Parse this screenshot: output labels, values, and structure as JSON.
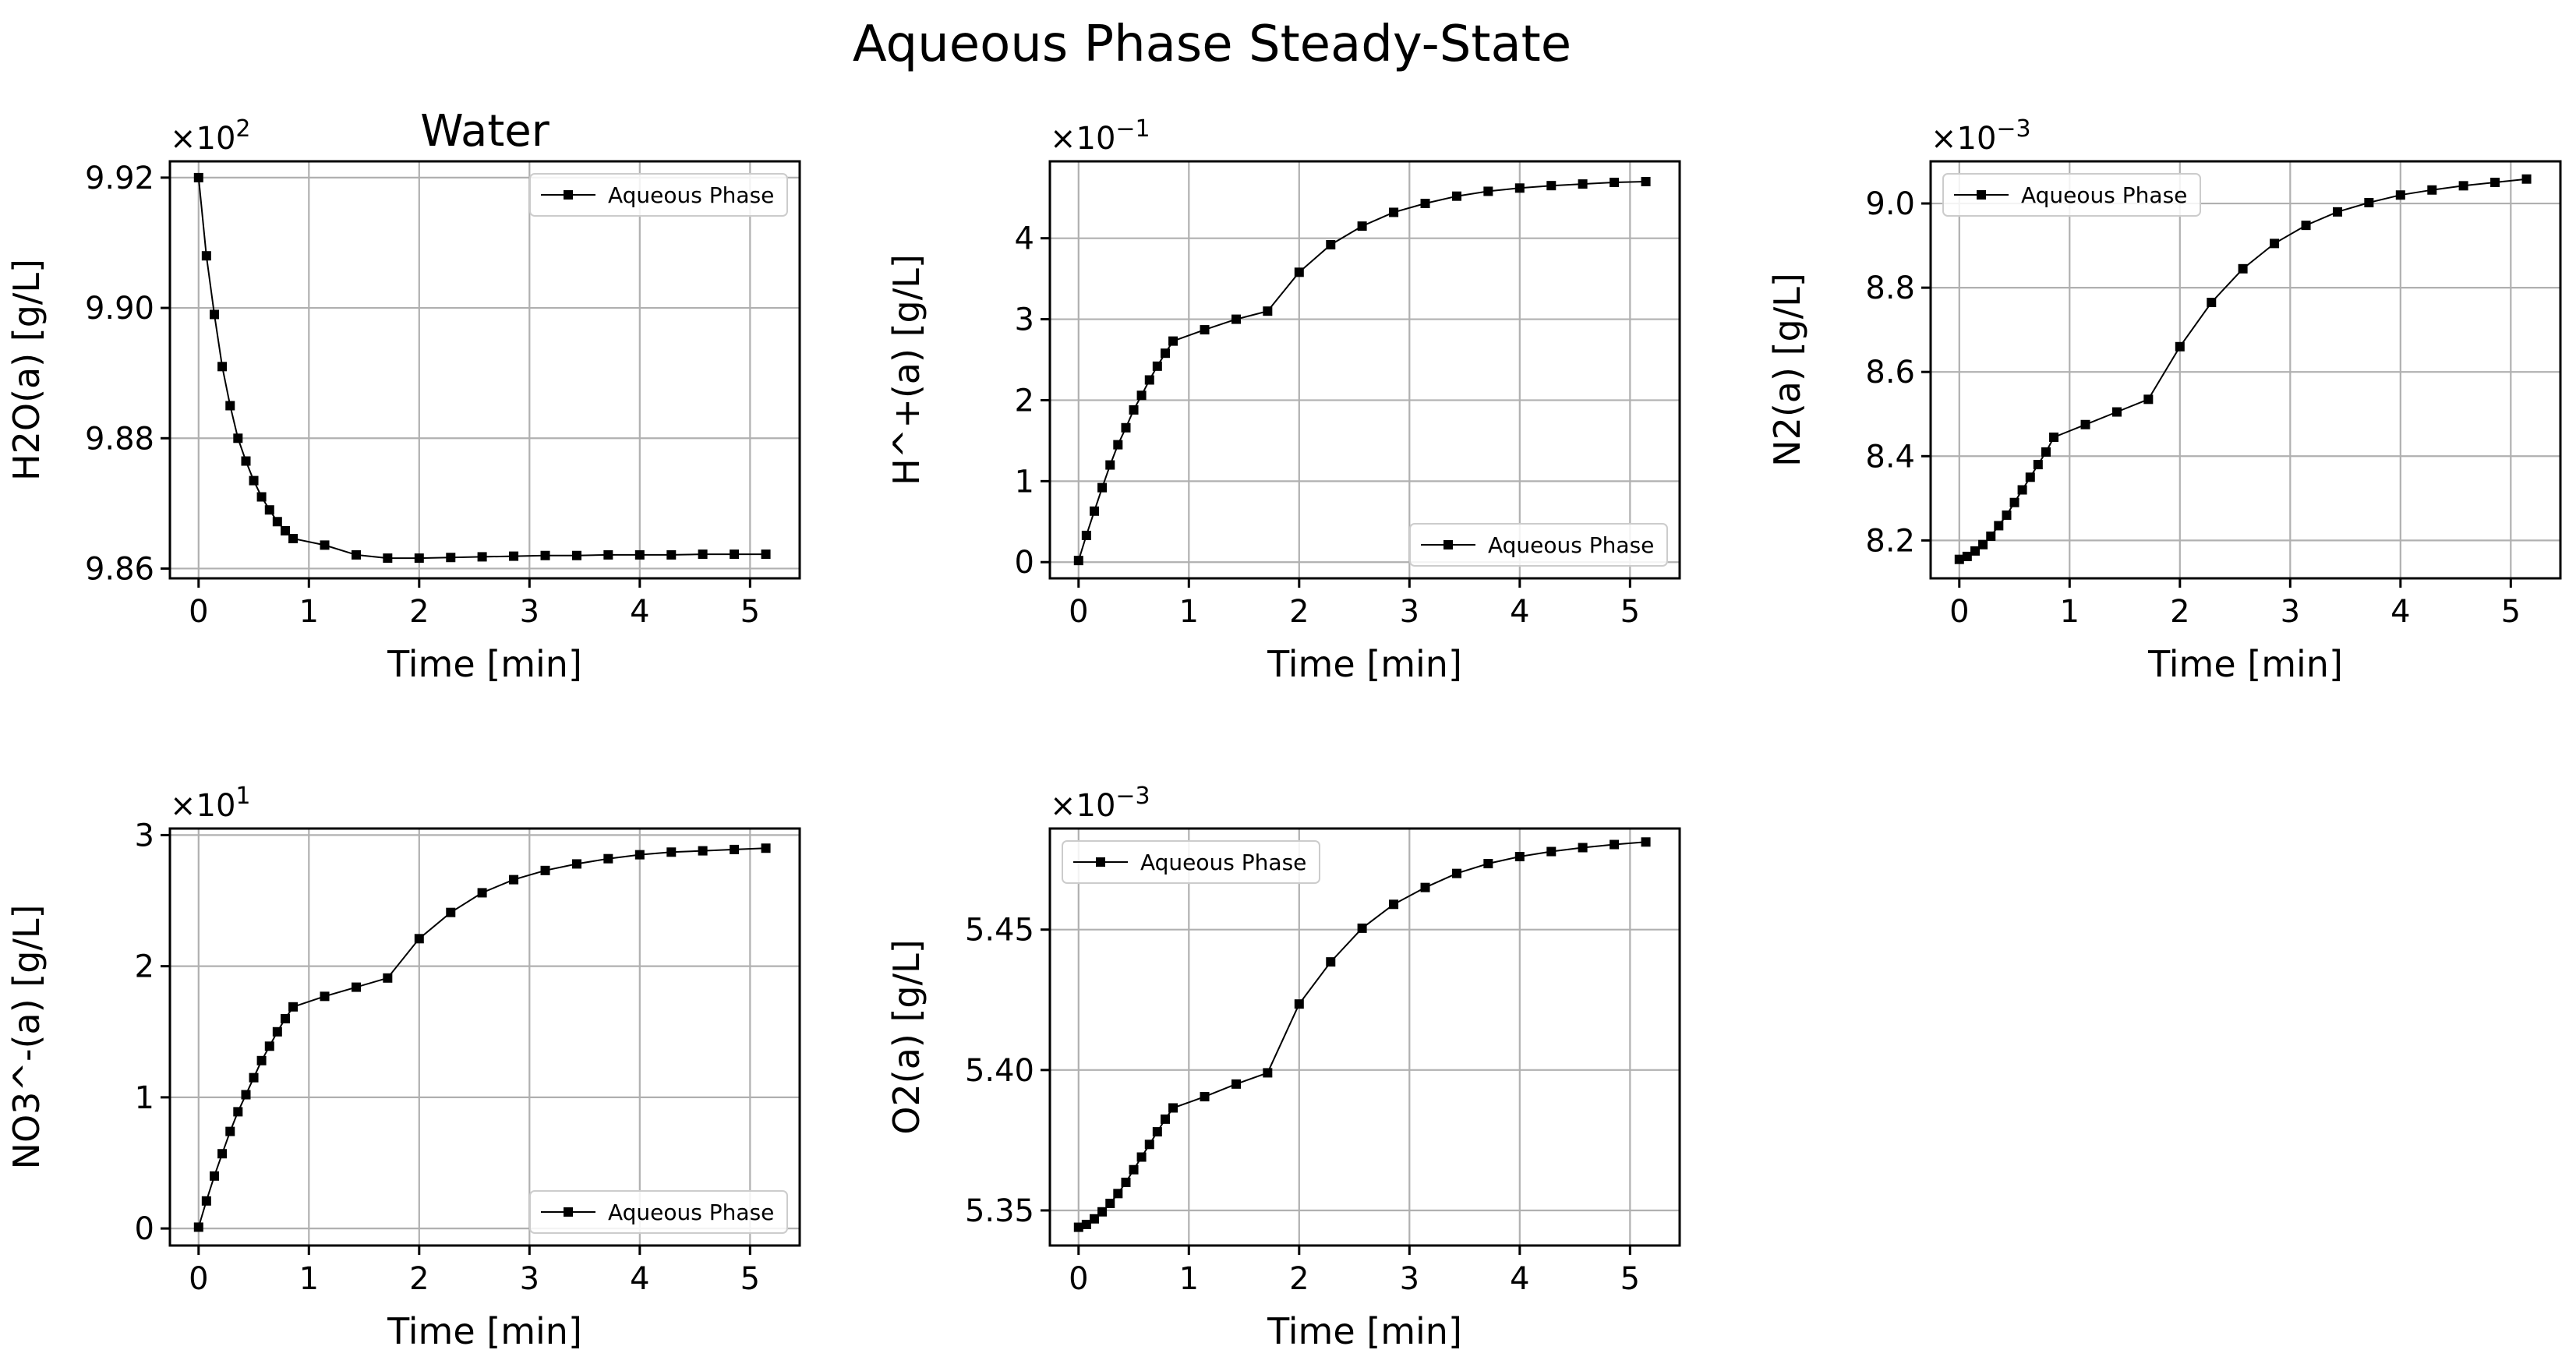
{
  "figure": {
    "title": "Aqueous Phase Steady-State",
    "series_color": "#000000",
    "grid_color": "#b0b0b0"
  },
  "chart_data": [
    {
      "type": "line",
      "title": "Water",
      "xlabel": "Time [min]",
      "ylabel": "H2O(a) [g/L]",
      "offset_text": "×10^2",
      "offset_base": "×10",
      "offset_exp": "2",
      "xlim": [
        -0.26,
        5.45
      ],
      "ylim": [
        9.8585,
        9.9225
      ],
      "xticks": [
        0,
        1,
        2,
        3,
        4,
        5
      ],
      "xtick_labels": [
        "0",
        "1",
        "2",
        "3",
        "4",
        "5"
      ],
      "yticks": [
        9.86,
        9.88,
        9.9,
        9.92
      ],
      "ytick_labels": [
        "9.86",
        "9.88",
        "9.90",
        "9.92"
      ],
      "grid": true,
      "legend_position": "upper right",
      "series": [
        {
          "name": "Aqueous Phase",
          "x": [
            0,
            0.071,
            0.143,
            0.214,
            0.286,
            0.357,
            0.429,
            0.5,
            0.571,
            0.643,
            0.714,
            0.786,
            0.857,
            1.143,
            1.429,
            1.714,
            2.0,
            2.286,
            2.571,
            2.857,
            3.143,
            3.429,
            3.714,
            4.0,
            4.286,
            4.571,
            4.857,
            5.143
          ],
          "y": [
            9.92,
            9.908,
            9.899,
            9.891,
            9.885,
            9.88,
            9.8765,
            9.8735,
            9.871,
            9.869,
            9.8672,
            9.8658,
            9.8646,
            9.8636,
            9.8621,
            9.8616,
            9.8616,
            9.8617,
            9.8618,
            9.8619,
            9.862,
            9.862,
            9.8621,
            9.8621,
            9.8621,
            9.8622,
            9.8622,
            9.8622
          ]
        }
      ]
    },
    {
      "type": "line",
      "title": "",
      "xlabel": "Time [min]",
      "ylabel": "H^+(a) [g/L]",
      "offset_text": "×10^-1",
      "offset_base": "×10",
      "offset_exp": "−1",
      "xlim": [
        -0.26,
        5.45
      ],
      "ylim": [
        -0.2,
        4.95
      ],
      "xticks": [
        0,
        1,
        2,
        3,
        4,
        5
      ],
      "xtick_labels": [
        "0",
        "1",
        "2",
        "3",
        "4",
        "5"
      ],
      "yticks": [
        0,
        1,
        2,
        3,
        4
      ],
      "ytick_labels": [
        "0",
        "1",
        "2",
        "3",
        "4"
      ],
      "grid": true,
      "legend_position": "lower right",
      "series": [
        {
          "name": "Aqueous Phase",
          "x": [
            0,
            0.071,
            0.143,
            0.214,
            0.286,
            0.357,
            0.429,
            0.5,
            0.571,
            0.643,
            0.714,
            0.786,
            0.857,
            1.143,
            1.429,
            1.714,
            2.0,
            2.286,
            2.571,
            2.857,
            3.143,
            3.429,
            3.714,
            4.0,
            4.286,
            4.571,
            4.857,
            5.143
          ],
          "y": [
            0.02,
            0.33,
            0.63,
            0.92,
            1.2,
            1.45,
            1.66,
            1.88,
            2.06,
            2.25,
            2.42,
            2.58,
            2.73,
            2.87,
            3.0,
            3.1,
            3.58,
            3.92,
            4.15,
            4.32,
            4.43,
            4.52,
            4.58,
            4.62,
            4.65,
            4.67,
            4.69,
            4.7
          ]
        }
      ]
    },
    {
      "type": "line",
      "title": "",
      "xlabel": "Time [min]",
      "ylabel": "N2(a) [g/L]",
      "offset_text": "×10^-3",
      "offset_base": "×10",
      "offset_exp": "−3",
      "xlim": [
        -0.26,
        5.45
      ],
      "ylim": [
        8.11,
        9.1
      ],
      "xticks": [
        0,
        1,
        2,
        3,
        4,
        5
      ],
      "xtick_labels": [
        "0",
        "1",
        "2",
        "3",
        "4",
        "5"
      ],
      "yticks": [
        8.2,
        8.4,
        8.6,
        8.8,
        9.0
      ],
      "ytick_labels": [
        "8.2",
        "8.4",
        "8.6",
        "8.8",
        "9.0"
      ],
      "grid": true,
      "legend_position": "upper left",
      "series": [
        {
          "name": "Aqueous Phase",
          "x": [
            0,
            0.071,
            0.143,
            0.214,
            0.286,
            0.357,
            0.429,
            0.5,
            0.571,
            0.643,
            0.714,
            0.786,
            0.857,
            1.143,
            1.429,
            1.714,
            2.0,
            2.286,
            2.571,
            2.857,
            3.143,
            3.429,
            3.714,
            4.0,
            4.286,
            4.571,
            4.857,
            5.143
          ],
          "y": [
            8.155,
            8.162,
            8.175,
            8.19,
            8.21,
            8.235,
            8.26,
            8.29,
            8.32,
            8.35,
            8.38,
            8.41,
            8.445,
            8.475,
            8.505,
            8.535,
            8.66,
            8.765,
            8.845,
            8.905,
            8.948,
            8.98,
            9.002,
            9.02,
            9.032,
            9.042,
            9.05,
            9.058
          ]
        }
      ]
    },
    {
      "type": "line",
      "title": "",
      "xlabel": "Time [min]",
      "ylabel": "NO3^-(a) [g/L]",
      "offset_text": "×10^1",
      "offset_base": "×10",
      "offset_exp": "1",
      "xlim": [
        -0.26,
        5.45
      ],
      "ylim": [
        -0.13,
        3.05
      ],
      "xticks": [
        0,
        1,
        2,
        3,
        4,
        5
      ],
      "xtick_labels": [
        "0",
        "1",
        "2",
        "3",
        "4",
        "5"
      ],
      "yticks": [
        0,
        1,
        2,
        3
      ],
      "ytick_labels": [
        "0",
        "1",
        "2",
        "3"
      ],
      "grid": true,
      "legend_position": "lower right",
      "series": [
        {
          "name": "Aqueous Phase",
          "x": [
            0,
            0.071,
            0.143,
            0.214,
            0.286,
            0.357,
            0.429,
            0.5,
            0.571,
            0.643,
            0.714,
            0.786,
            0.857,
            1.143,
            1.429,
            1.714,
            2.0,
            2.286,
            2.571,
            2.857,
            3.143,
            3.429,
            3.714,
            4.0,
            4.286,
            4.571,
            4.857,
            5.143
          ],
          "y": [
            0.01,
            0.21,
            0.4,
            0.57,
            0.74,
            0.89,
            1.02,
            1.15,
            1.28,
            1.39,
            1.5,
            1.6,
            1.69,
            1.77,
            1.84,
            1.91,
            2.21,
            2.41,
            2.56,
            2.66,
            2.73,
            2.78,
            2.82,
            2.85,
            2.87,
            2.88,
            2.89,
            2.9
          ]
        }
      ]
    },
    {
      "type": "line",
      "title": "",
      "xlabel": "Time [min]",
      "ylabel": "O2(a) [g/L]",
      "offset_text": "×10^-3",
      "offset_base": "×10",
      "offset_exp": "−3",
      "xlim": [
        -0.26,
        5.45
      ],
      "ylim": [
        5.3375,
        5.486
      ],
      "xticks": [
        0,
        1,
        2,
        3,
        4,
        5
      ],
      "xtick_labels": [
        "0",
        "1",
        "2",
        "3",
        "4",
        "5"
      ],
      "yticks": [
        5.35,
        5.4,
        5.45
      ],
      "ytick_labels": [
        "5.35",
        "5.40",
        "5.45"
      ],
      "grid": true,
      "legend_position": "upper left",
      "series": [
        {
          "name": "Aqueous Phase",
          "x": [
            0,
            0.071,
            0.143,
            0.214,
            0.286,
            0.357,
            0.429,
            0.5,
            0.571,
            0.643,
            0.714,
            0.786,
            0.857,
            1.143,
            1.429,
            1.714,
            2.0,
            2.286,
            2.571,
            2.857,
            3.143,
            3.429,
            3.714,
            4.0,
            4.286,
            4.571,
            4.857,
            5.143
          ],
          "y": [
            5.344,
            5.345,
            5.347,
            5.3495,
            5.3525,
            5.356,
            5.36,
            5.3645,
            5.369,
            5.3735,
            5.378,
            5.3825,
            5.3865,
            5.3905,
            5.395,
            5.399,
            5.4235,
            5.4385,
            5.4505,
            5.459,
            5.465,
            5.47,
            5.4735,
            5.476,
            5.4778,
            5.4792,
            5.4803,
            5.4812
          ]
        }
      ]
    }
  ]
}
